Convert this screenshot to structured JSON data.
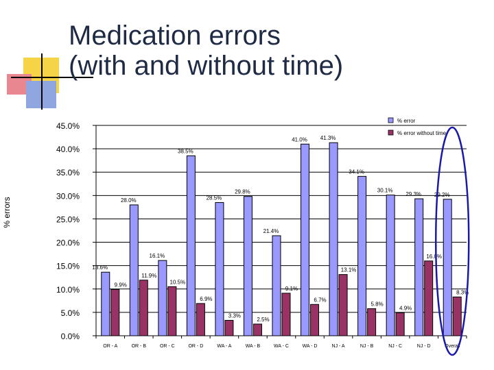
{
  "slide": {
    "title_line1": "Medication errors",
    "title_line2": "(with and without time)"
  },
  "colors": {
    "series1": "#9999ff",
    "series2": "#993366",
    "highlight": "#1a1aa6",
    "deco_yellow": "#f5d547",
    "deco_red": "#e8878f",
    "deco_blue": "#8fa6e0"
  },
  "chart_data": {
    "type": "bar",
    "title": "",
    "xlabel": "",
    "ylabel": "% errors",
    "ylim": [
      0,
      45
    ],
    "yticks": [
      0,
      5,
      10,
      15,
      20,
      25,
      30,
      35,
      40,
      45
    ],
    "ytick_labels": [
      "0.0%",
      "5.0%",
      "10.0%",
      "15.0%",
      "20.0%",
      "25.0%",
      "30.0%",
      "35.0%",
      "40.0%",
      "45.0%"
    ],
    "categories": [
      "OR - A",
      "OR - B",
      "OR - C",
      "OR - D",
      "WA - A",
      "WA - B",
      "WA - C",
      "WA - D",
      "NJ - A",
      "NJ - B",
      "NJ - C",
      "NJ - D",
      "Overall"
    ],
    "series": [
      {
        "name": "% error",
        "values": [
          13.6,
          28.0,
          16.1,
          38.5,
          28.5,
          29.8,
          21.4,
          41.0,
          41.3,
          34.1,
          30.1,
          29.3,
          29.2
        ],
        "labels": [
          "13.6%",
          "28.0%",
          "16.1%",
          "38.5%",
          "28.5%",
          "29.8%",
          "21.4%",
          "41.0%",
          "41.3%",
          "34.1%",
          "30.1%",
          "29.3%",
          "29.2%"
        ]
      },
      {
        "name": "% error without time",
        "values": [
          9.9,
          11.9,
          10.5,
          6.9,
          3.3,
          2.5,
          9.1,
          6.7,
          13.1,
          5.8,
          4.9,
          16.0,
          8.3
        ],
        "labels": [
          "9.9%",
          "11.9%",
          "10.5%",
          "6.9%",
          "3.3%",
          "2.5%",
          "9.1%",
          "6.7%",
          "13.1%",
          "5.8%",
          "4.9%",
          "16.0%",
          "8.3%"
        ]
      }
    ],
    "legend_position": "top-right",
    "highlighted_category": "Overall"
  }
}
